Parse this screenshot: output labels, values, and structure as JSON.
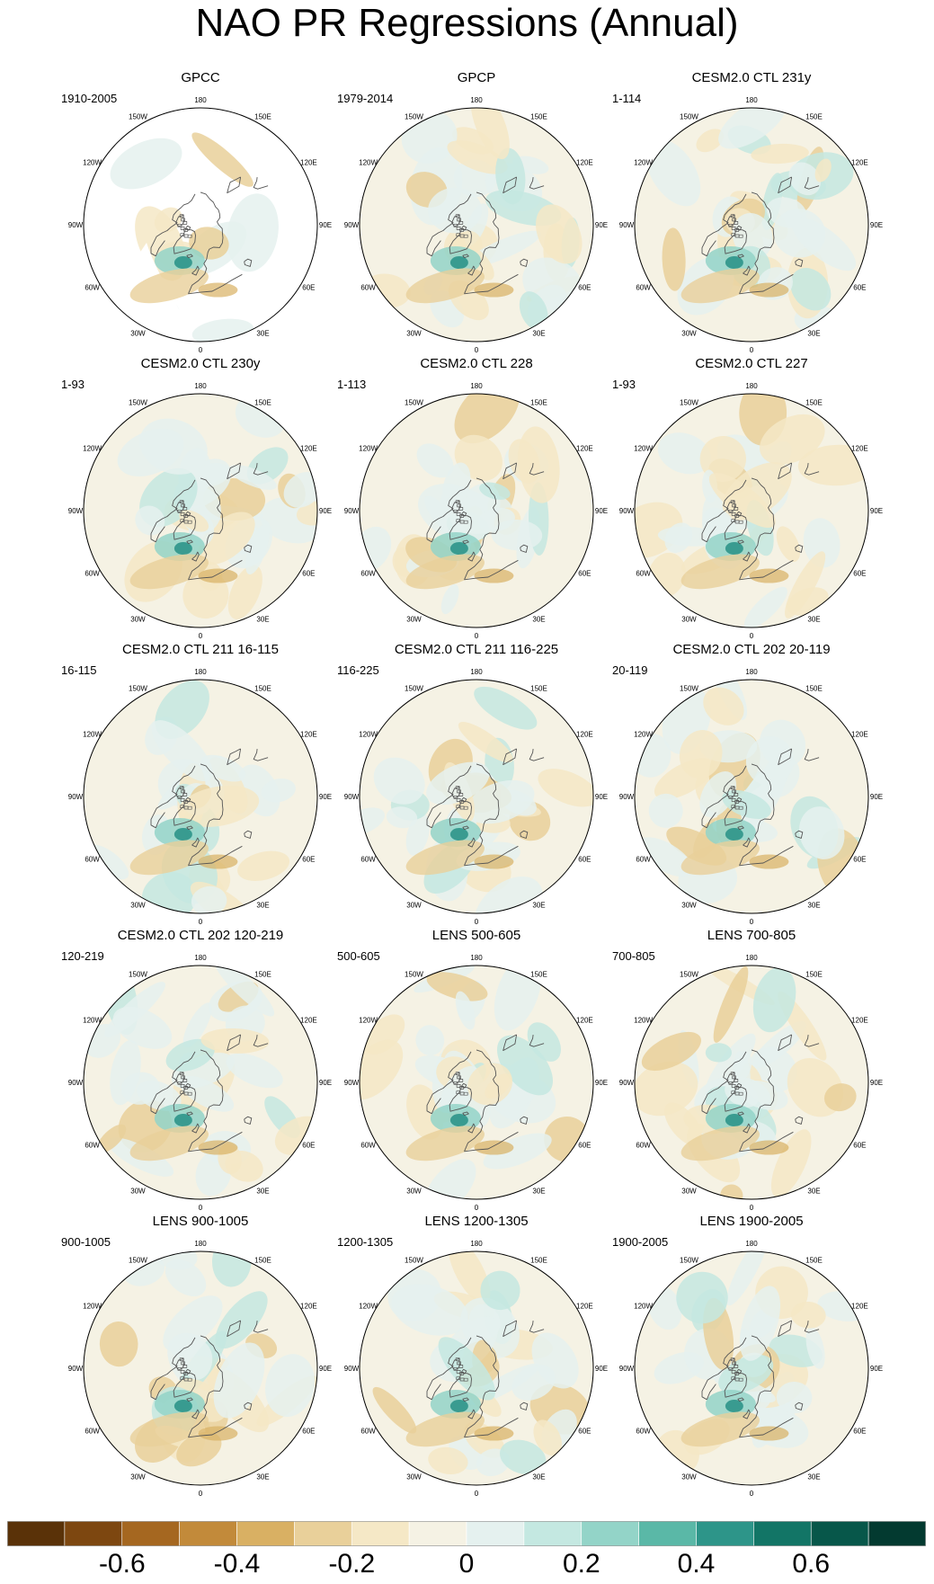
{
  "title": "NAO PR Regressions (Annual)",
  "chart_data": {
    "type": "heatmap",
    "projection": "north polar stereographic",
    "longitude_labels": [
      "180",
      "150E",
      "120E",
      "90E",
      "60E",
      "30E",
      "0",
      "30W",
      "60W",
      "90W",
      "120W",
      "150W"
    ],
    "panels": [
      {
        "title": "GPCC",
        "period": "1910-2005"
      },
      {
        "title": "GPCP",
        "period": "1979-2014"
      },
      {
        "title": "CESM2.0 CTL 231y",
        "period": "1-114"
      },
      {
        "title": "CESM2.0 CTL 230y",
        "period": "1-93"
      },
      {
        "title": "CESM2.0 CTL 228",
        "period": "1-113"
      },
      {
        "title": "CESM2.0 CTL 227",
        "period": "1-93"
      },
      {
        "title": "CESM2.0 CTL 211 16-115",
        "period": "16-115"
      },
      {
        "title": "CESM2.0 CTL 211 116-225",
        "period": "116-225"
      },
      {
        "title": "CESM2.0 CTL 202 20-119",
        "period": "20-119"
      },
      {
        "title": "CESM2.0 CTL 202 120-219",
        "period": "120-219"
      },
      {
        "title": "LENS 500-605",
        "period": "500-605"
      },
      {
        "title": "LENS 700-805",
        "period": "700-805"
      },
      {
        "title": "LENS 900-1005",
        "period": "900-1005"
      },
      {
        "title": "LENS 1200-1305",
        "period": "1200-1305"
      },
      {
        "title": "LENS 1900-2005",
        "period": "1900-2005"
      }
    ],
    "colorbar": {
      "ticks": [
        "-0.6",
        "-0.4",
        "-0.2",
        "0",
        "0.2",
        "0.4",
        "0.6"
      ],
      "tick_values": [
        -0.6,
        -0.4,
        -0.2,
        0,
        0.2,
        0.4,
        0.6
      ],
      "range": [
        -0.8,
        0.8
      ],
      "colors": [
        "#5a3208",
        "#7d4710",
        "#a56720",
        "#c28a3a",
        "#d9b063",
        "#e9d09a",
        "#f5e8c6",
        "#f5f2e4",
        "#e5f1ef",
        "#c4e8e1",
        "#93d4c8",
        "#5ab8a7",
        "#2d9589",
        "#127566",
        "#07574a",
        "#033a30"
      ]
    }
  }
}
